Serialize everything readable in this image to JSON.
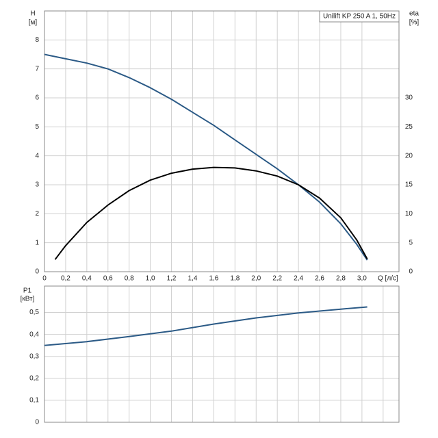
{
  "chart_data": [
    {
      "type": "line",
      "annotation": "Unilift KP 250 A 1, 50Hz",
      "ylabel": "H",
      "yunit": "[м]",
      "y2label": "eta",
      "y2unit": "[%]",
      "xlabel": "Q [л/с]",
      "xlim": [
        0,
        3.35
      ],
      "xticks": [
        0,
        {
          "value": 0.2,
          "label": "0,2"
        },
        {
          "value": 0.4,
          "label": "0,4"
        },
        {
          "value": 0.6,
          "label": "0,6"
        },
        {
          "value": 0.8,
          "label": "0,8"
        },
        {
          "value": 1.0,
          "label": "1,0"
        },
        {
          "value": 1.2,
          "label": "1,2"
        },
        {
          "value": 1.4,
          "label": "1,4"
        },
        {
          "value": 1.6,
          "label": "1,6"
        },
        {
          "value": 1.8,
          "label": "1,8"
        },
        {
          "value": 2.0,
          "label": "2,0"
        },
        {
          "value": 2.2,
          "label": "2,2"
        },
        {
          "value": 2.4,
          "label": "2,4"
        },
        {
          "value": 2.6,
          "label": "2,6"
        },
        {
          "value": 2.8,
          "label": "2,8"
        },
        {
          "value": 3.0,
          "label": "3,0"
        }
      ],
      "ylim": [
        0,
        9
      ],
      "yticks": [
        0,
        1,
        2,
        3,
        4,
        5,
        6,
        7,
        8
      ],
      "y2lim": [
        0,
        45
      ],
      "y2ticks": [
        0,
        5,
        10,
        15,
        20,
        25,
        30
      ],
      "grid": true,
      "series": [
        {
          "color": "#2b5a86",
          "x": [
            0,
            0.2,
            0.4,
            0.6,
            0.8,
            1.0,
            1.2,
            1.4,
            1.6,
            1.8,
            2.0,
            2.2,
            2.4,
            2.6,
            2.8,
            2.95,
            3.05
          ],
          "values": [
            7.5,
            7.35,
            7.2,
            7.0,
            6.7,
            6.35,
            5.95,
            5.5,
            5.05,
            4.55,
            4.05,
            3.55,
            3.0,
            2.4,
            1.65,
            0.95,
            0.4
          ]
        },
        {
          "color": "#000000",
          "axis": "y2",
          "x": [
            0.1,
            0.2,
            0.4,
            0.6,
            0.8,
            1.0,
            1.2,
            1.4,
            1.6,
            1.8,
            2.0,
            2.2,
            2.4,
            2.6,
            2.8,
            2.95,
            3.05
          ],
          "values": [
            2.1,
            4.5,
            8.5,
            11.5,
            14,
            15.8,
            17,
            17.7,
            18,
            17.9,
            17.4,
            16.5,
            15,
            12.7,
            9.3,
            5.5,
            2.2
          ]
        }
      ]
    },
    {
      "type": "line",
      "ylabel": "P1",
      "yunit": "[кВт]",
      "xlim": [
        0,
        3.35
      ],
      "xticks": [
        0,
        0.2,
        0.4,
        0.6,
        0.8,
        1.0,
        1.2,
        1.4,
        1.6,
        1.8,
        2.0,
        2.2,
        2.4,
        2.6,
        2.8,
        3.0,
        3.2
      ],
      "ylim": [
        0,
        0.62
      ],
      "yticks": [
        0,
        {
          "value": 0.1,
          "label": "0,1"
        },
        {
          "value": 0.2,
          "label": "0,2"
        },
        {
          "value": 0.3,
          "label": "0,3"
        },
        {
          "value": 0.4,
          "label": "0,4"
        },
        {
          "value": 0.5,
          "label": "0,5"
        }
      ],
      "grid": true,
      "series": [
        {
          "color": "#2b5a86",
          "x": [
            0,
            0.4,
            0.8,
            1.2,
            1.6,
            2.0,
            2.4,
            2.8,
            3.05
          ],
          "values": [
            0.35,
            0.367,
            0.39,
            0.415,
            0.447,
            0.475,
            0.498,
            0.515,
            0.525
          ]
        }
      ]
    }
  ]
}
